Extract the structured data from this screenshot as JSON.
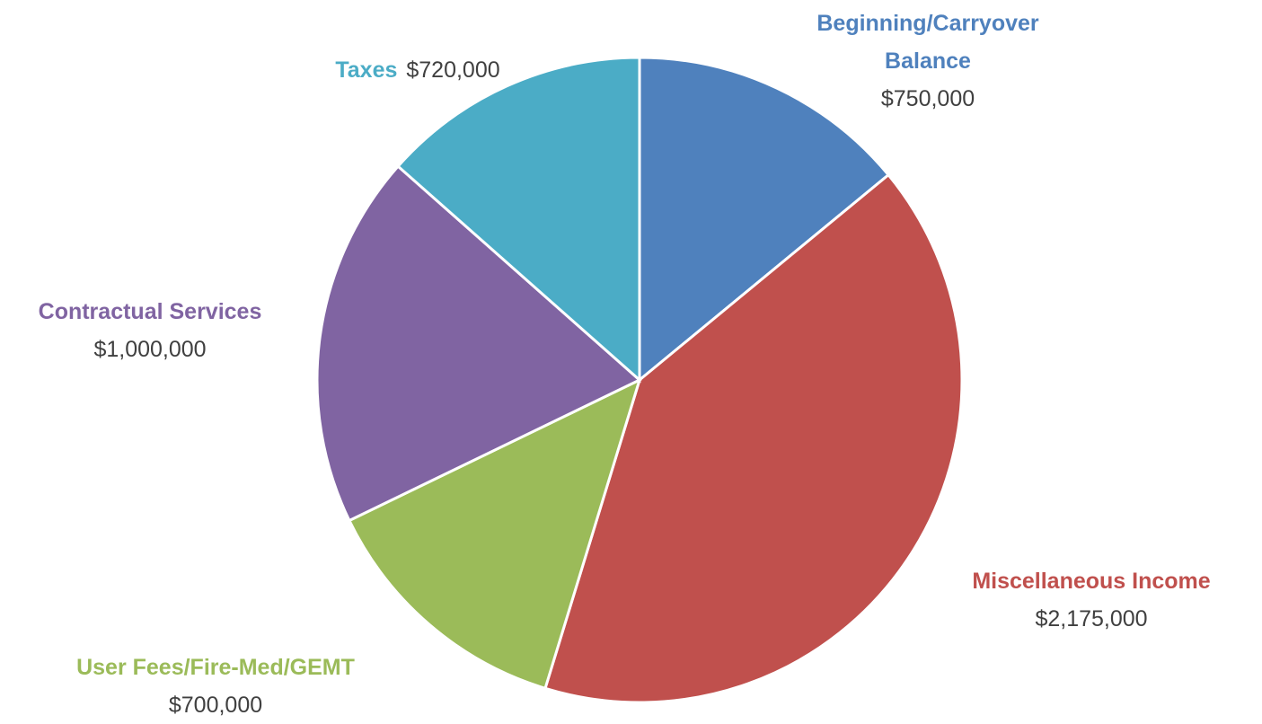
{
  "chart_data": {
    "type": "pie",
    "categories": [
      "Beginning/Carryover Balance",
      "Miscellaneous Income",
      "User Fees/Fire-Med/GEMT",
      "Contractual Services",
      "Taxes"
    ],
    "values": [
      750000,
      2175000,
      700000,
      1000000,
      720000
    ],
    "value_labels": [
      "$750,000",
      "$2,175,000",
      "$700,000",
      "$1,000,000",
      "$720,000"
    ],
    "colors": [
      "#4f81bd",
      "#c0504d",
      "#9bbb59",
      "#8064a2",
      "#4bacc6"
    ]
  }
}
